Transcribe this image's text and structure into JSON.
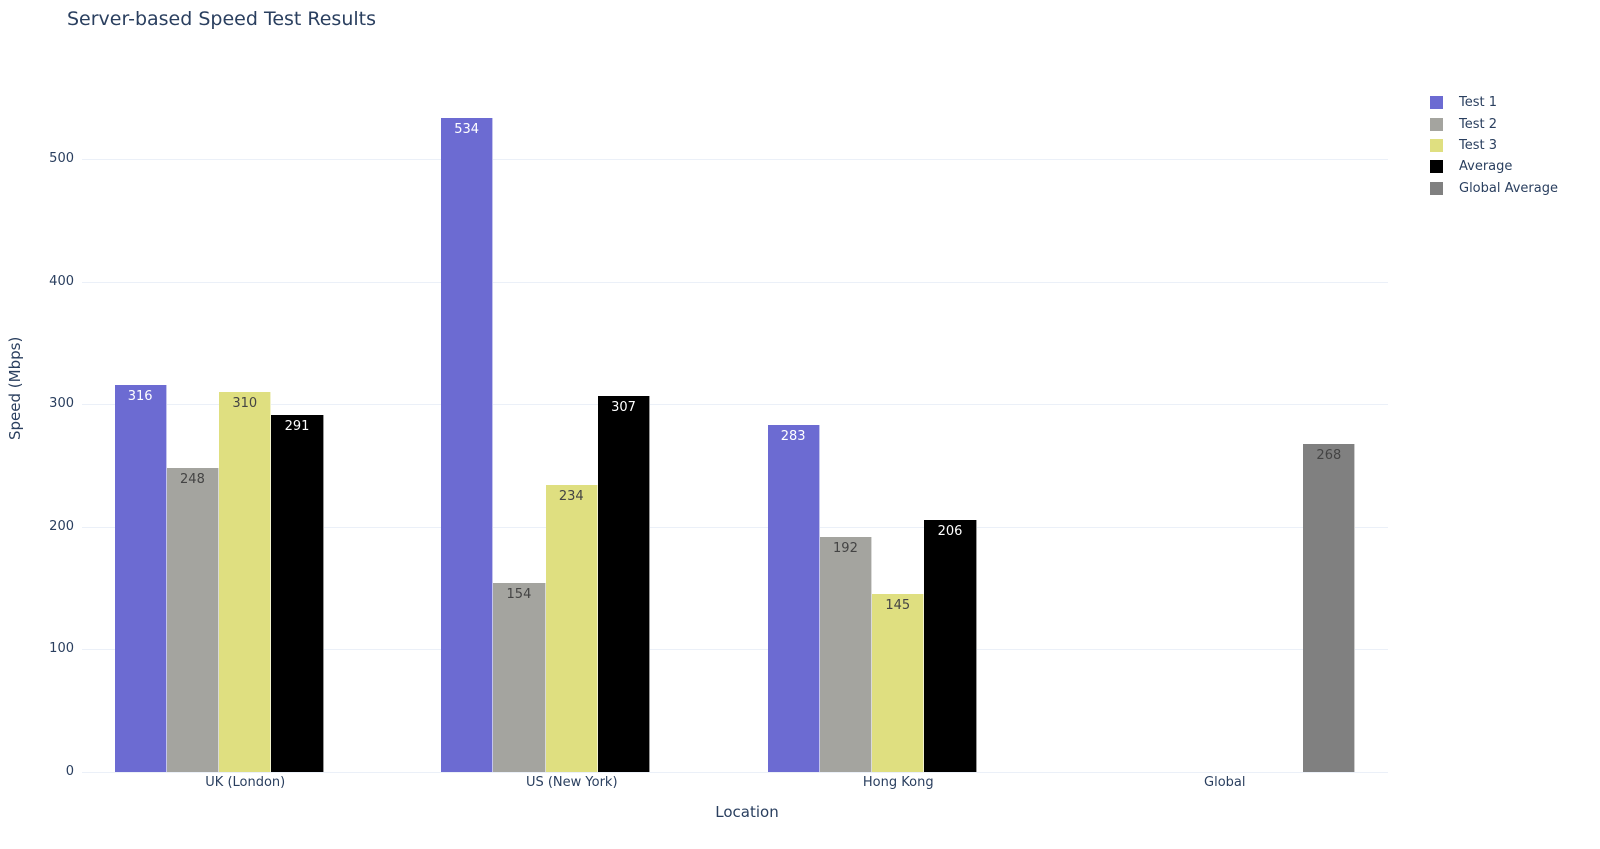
{
  "chart_data": {
    "type": "bar",
    "title": "Server-based Speed Test Results",
    "xlabel": "Location",
    "ylabel": "Speed (Mbps)",
    "ylim": [
      0,
      580
    ],
    "yticks": [
      0,
      100,
      200,
      300,
      400,
      500
    ],
    "grid": true,
    "legend_position": "right-top",
    "categories": [
      "UK (London)",
      "US (New York)",
      "Hong Kong",
      "Global"
    ],
    "series": [
      {
        "name": "Test 1",
        "color": "#6c6bd2",
        "label_color": "#ffffff",
        "values": [
          316,
          534,
          283,
          null
        ]
      },
      {
        "name": "Test 2",
        "color": "#a4a49f",
        "label_color": "#444444",
        "values": [
          248,
          154,
          192,
          null
        ]
      },
      {
        "name": "Test 3",
        "color": "#dfdf80",
        "label_color": "#444444",
        "values": [
          310,
          234,
          145,
          null
        ]
      },
      {
        "name": "Average",
        "color": "#000000",
        "label_color": "#ffffff",
        "values": [
          291,
          307,
          206,
          null
        ]
      },
      {
        "name": "Global Average",
        "color": "#808080",
        "label_color": "#444444",
        "values": [
          null,
          null,
          null,
          268
        ]
      }
    ]
  }
}
